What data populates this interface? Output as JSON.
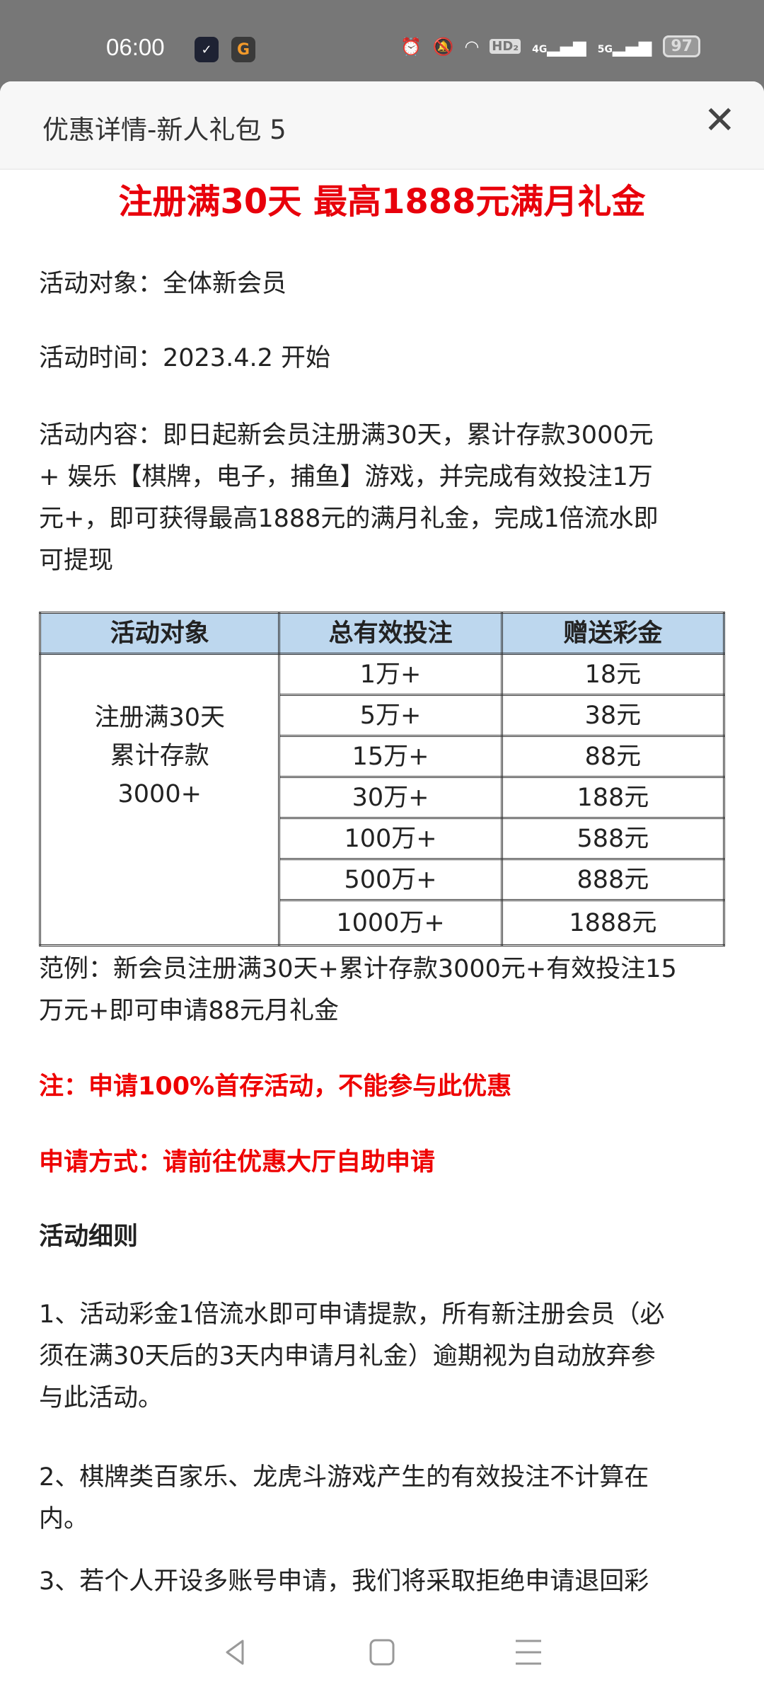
{
  "status_bar": {
    "time": "06:00",
    "battery": "97",
    "icons": [
      "mail-icon",
      "gold-coin-app-icon",
      "alarm-icon",
      "bell-muted-icon",
      "wifi-icon",
      "hd-icon",
      "4g-signal-icon",
      "5g-signal-icon",
      "battery-icon"
    ],
    "hd": "HD₂",
    "net1": "4G",
    "net2": "5G"
  },
  "header": {
    "title": "优惠详情-新人礼包 5",
    "close": "✕"
  },
  "heading": "注册满30天 最高1888元满月礼金",
  "target_line": "活动对象：全体新会员",
  "time_line": "活动时间：2023.4.2 开始",
  "content_lines": [
    "活动内容：即日起新会员注册满30天，累计存款3000元",
    "+ 娱乐【棋牌，电子，捕鱼】游戏，并完成有效投注1万",
    "元+，即可获得最高1888元的满月礼金，完成1倍流水即",
    "可提现"
  ],
  "table": {
    "headers": [
      "活动对象",
      "总有效投注",
      "赠送彩金"
    ],
    "target_lines": [
      "注册满30天",
      "累计存款",
      "3000+"
    ],
    "rows": [
      [
        "1万+",
        "18元"
      ],
      [
        "5万+",
        "38元"
      ],
      [
        "15万+",
        "88元"
      ],
      [
        "30万+",
        "188元"
      ],
      [
        "100万+",
        "588元"
      ],
      [
        "500万+",
        "888元"
      ],
      [
        "1000万+",
        "1888元"
      ]
    ]
  },
  "example_lines": [
    "范例：新会员注册满30天+累计存款3000元+有效投注15",
    "万元+即可申请88元月礼金"
  ],
  "note": "注：申请100%首存活动，不能参与此优惠",
  "apply": "申请方式：请前往优惠大厅自助申请",
  "rules_title": "活动细则",
  "rule1_lines": [
    "1、活动彩金1倍流水即可申请提款，所有新注册会员（必",
    "须在满30天后的3天内申请月礼金）逾期视为自动放弃参",
    "与此活动。"
  ],
  "rule2_lines": [
    "2、棋牌类百家乐、龙虎斗游戏产生的有效投注不计算在",
    "内。"
  ],
  "rule3_lines": [
    "3、若个人开设多账号申请，我们将采取拒绝申请退回彩"
  ],
  "colors": {
    "accent_red": "#e8000b",
    "table_header": "#bdd7ee"
  }
}
